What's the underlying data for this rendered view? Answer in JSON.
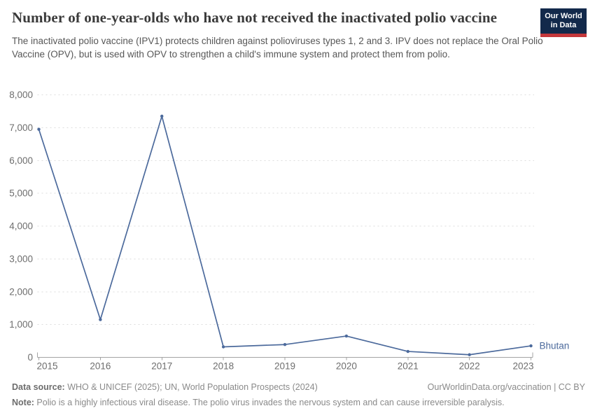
{
  "header": {
    "title": "Number of one-year-olds who have not received the inactivated polio vaccine",
    "subtitle": "The inactivated polio vaccine (IPV1) protects children against polioviruses types 1, 2 and 3. IPV does not replace the Oral Polio Vaccine (OPV), but is used with OPV to strengthen a child's immune system and protect them from polio.",
    "logo": {
      "line1": "Our World",
      "line2": "in Data"
    }
  },
  "chart_data": {
    "type": "line",
    "x": [
      2015,
      2016,
      2017,
      2018,
      2019,
      2020,
      2021,
      2022,
      2023
    ],
    "series": [
      {
        "name": "Bhutan",
        "values": [
          6950,
          1150,
          7350,
          320,
          390,
          650,
          180,
          80,
          350
        ],
        "color": "#4c6a9c"
      }
    ],
    "title": "Number of one-year-olds who have not received the inactivated polio vaccine",
    "xlabel": "",
    "ylabel": "",
    "ylim": [
      0,
      8000
    ],
    "ytick_step": 1000,
    "grid": "horizontal-dashed",
    "legend_position": "end-of-line-label",
    "end_label": "Bhutan"
  },
  "footer": {
    "datasource_label": "Data source:",
    "datasource_text": " WHO & UNICEF (2025); UN, World Population Prospects (2024)",
    "note_label": "Note:",
    "note_text": " Polio is a highly infectious viral disease. The polio virus invades the nervous system and can cause irreversible paralysis.",
    "credit": "OurWorldinData.org/vaccination | CC BY"
  },
  "colors": {
    "line": "#4c6a9c",
    "grid": "#dddddd",
    "axis": "#a3a3a3",
    "tick_label": "#6e6e6e",
    "logo_bg": "#12294b",
    "logo_bar": "#c4373b",
    "title": "#3a3a3a"
  }
}
